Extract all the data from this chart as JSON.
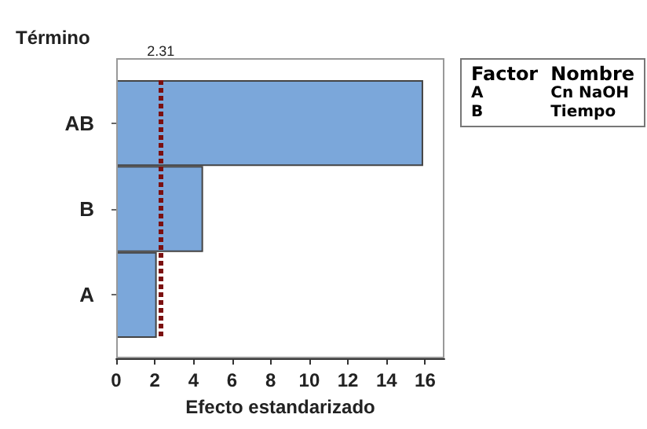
{
  "chart_data": {
    "type": "bar",
    "orientation": "horizontal",
    "xlabel": "Efecto estandarizado",
    "ylabel": "Término",
    "categories": [
      "AB",
      "B",
      "A"
    ],
    "values": [
      15.9,
      4.5,
      2.1
    ],
    "color": "#7ba7da",
    "xlim": [
      0,
      17
    ],
    "xticks": [
      0,
      2,
      4,
      6,
      8,
      10,
      12,
      14,
      16
    ],
    "grid": false,
    "ref_lines": [
      {
        "axis": "x",
        "value": 2.31,
        "label": "2.31",
        "color": "#7b1010",
        "line_style": "dotted"
      }
    ],
    "annotations": [
      "Factor",
      "Nombre",
      "A",
      "Cn NaOH",
      "B",
      "Tiempo"
    ]
  }
}
